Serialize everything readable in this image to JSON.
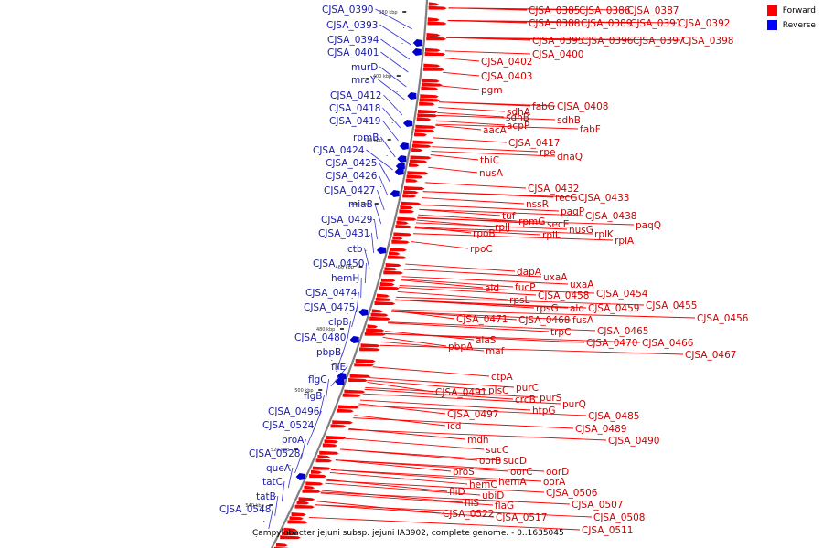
{
  "caption": "Campylobacter jejuni subsp. jejuni IA3902, complete genome. - 0..1635045",
  "legend": [
    {
      "label": "Forward",
      "color": "#ff0000"
    },
    {
      "label": "Reverse",
      "color": "#0000ff"
    }
  ],
  "colors": {
    "forward": "#ff0000",
    "reverse": "#0000cc",
    "backbone": "#7f7f7f"
  },
  "ticks": [
    "380 kbp",
    "400 kbp",
    "420 kbp",
    "440 kbp",
    "460 kbp",
    "480 kbp",
    "500 kbp",
    "520 kbp",
    "540 kbp"
  ],
  "forward_labels": [
    "CJSA_0385",
    "CJSA_0386",
    "CJSA_0387",
    "CJSA_0388",
    "CJSA_0389",
    "CJSA_0391",
    "CJSA_0392",
    "CJSA_0395",
    "CJSA_0396",
    "CJSA_0397",
    "CJSA_0398",
    "CJSA_0400",
    "CJSA_0402",
    "CJSA_0403",
    "pgm",
    "fabG",
    "CJSA_0408",
    "sdhA",
    "sdhB",
    "sdhB",
    "acpP",
    "aacA",
    "fabF",
    "CJSA_0417",
    "rpe",
    "dnaQ",
    "thiC",
    "nusA",
    "CJSA_0432",
    "recG",
    "CJSA_0433",
    "nssR",
    "paqP",
    "tuf",
    "CJSA_0438",
    "rpmG",
    "secE",
    "paqQ",
    "rplJ",
    "nusG",
    "rplK",
    "rpoB",
    "rplL",
    "rplA",
    "rpoC",
    "dapA",
    "uxaA",
    "uxaA",
    "ald",
    "fucP",
    "CJSA_0454",
    "rpsL",
    "CJSA_0458",
    "CJSA_0455",
    "rpsG",
    "ald",
    "CJSA_0459",
    "CJSA_0471",
    "CJSA_0468",
    "fusA",
    "CJSA_0456",
    "trpC",
    "CJSA_0465",
    "alaS",
    "CJSA_0470",
    "CJSA_0466",
    "pbpA",
    "maf",
    "CJSA_0467",
    "ctpA",
    "purC",
    "CJSA_0491",
    "plsC",
    "purS",
    "crcB",
    "purQ",
    "htpG",
    "CJSA_0485",
    "CJSA_0497",
    "CJSA_0489",
    "icd",
    "CJSA_0490",
    "mdh",
    "sucC",
    "oorB",
    "sucD",
    "proS",
    "oorC",
    "oorD",
    "hemC",
    "hemA",
    "oorA",
    "fliD",
    "ubiD",
    "CJSA_0506",
    "fliS",
    "flaG",
    "CJSA_0507",
    "CJSA_0522",
    "CJSA_0517",
    "CJSA_0508",
    "CJSA_0511"
  ],
  "reverse_labels": [
    "CJSA_0390",
    "CJSA_0393",
    "CJSA_0394",
    "CJSA_0401",
    "murD",
    "mraY",
    "CJSA_0412",
    "CJSA_0418",
    "CJSA_0419",
    "rpmB",
    "CJSA_0424",
    "CJSA_0425",
    "CJSA_0426",
    "CJSA_0427",
    "miaB",
    "CJSA_0429",
    "CJSA_0431",
    "ctb",
    "CJSA_0450",
    "hemH",
    "CJSA_0474",
    "CJSA_0475",
    "clpB",
    "CJSA_0480",
    "pbpB",
    "fliE",
    "flgC",
    "flgB",
    "CJSA_0496",
    "CJSA_0524",
    "proA",
    "CJSA_0528",
    "queA",
    "tatC",
    "tatB",
    "CJSA_0548"
  ]
}
